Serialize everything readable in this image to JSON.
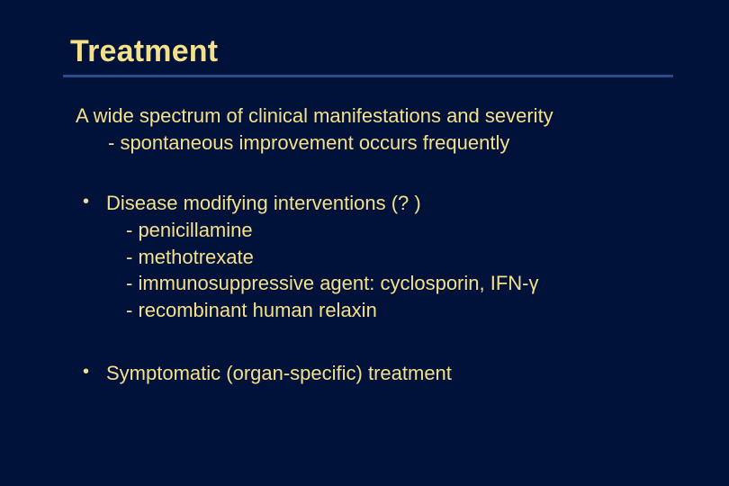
{
  "slide": {
    "background_color": "#00123a",
    "text_color": "#f5e08a",
    "rule_color": "#2a4a8a",
    "title_fontsize": 34,
    "body_fontsize": 22,
    "title": "Treatment",
    "intro_line": "A wide spectrum of clinical manifestations and severity",
    "intro_sub": "- spontaneous improvement occurs frequently",
    "bullets": [
      {
        "text": "Disease modifying interventions (? )",
        "subs": [
          "- penicillamine",
          "- methotrexate",
          "- immunosuppressive agent: cyclosporin, IFN-γ",
          "- recombinant human relaxin"
        ]
      },
      {
        "text": "Symptomatic (organ-specific) treatment",
        "subs": []
      }
    ]
  }
}
